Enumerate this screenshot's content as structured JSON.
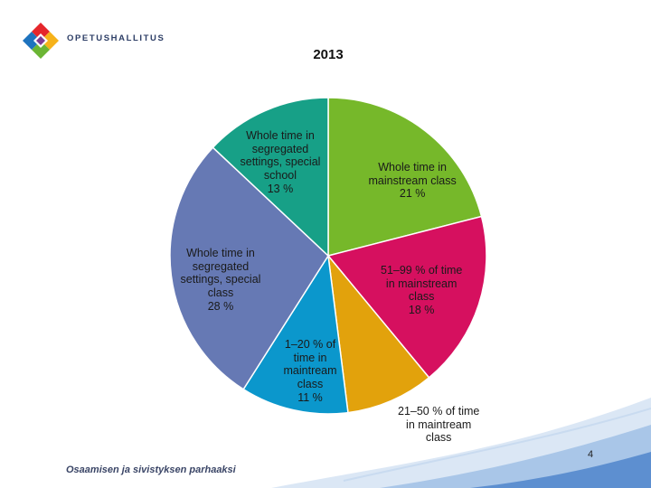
{
  "brand": {
    "name": "OPETUSHALLITUS",
    "tagline": "Osaamisen ja sivistyksen parhaaksi"
  },
  "slide": {
    "page_number": "4"
  },
  "colors": {
    "green": "#76b82a",
    "magenta": "#d6105f",
    "orange": "#e2a20c",
    "blue": "#0b97cc",
    "slate": "#6679b4",
    "teal": "#17a087"
  },
  "chart_data": {
    "type": "pie",
    "title": "2013",
    "unit": "%",
    "slices": [
      {
        "label_lines": [
          "Whole time in",
          "mainstream class"
        ],
        "value": 21,
        "value_text": "21 %",
        "color": "#76b82a"
      },
      {
        "label_lines": [
          "51–99 % of time",
          "in mainstream",
          "class"
        ],
        "value": 18,
        "value_text": "18 %",
        "color": "#d6105f"
      },
      {
        "label_lines": [
          "21–50 % of time",
          "in maintream",
          "class"
        ],
        "value": 9,
        "value_text": "",
        "color": "#e2a20c"
      },
      {
        "label_lines": [
          "1–20 % of",
          "time in",
          "maintream",
          "class"
        ],
        "value": 11,
        "value_text": "11 %",
        "color": "#0b97cc"
      },
      {
        "label_lines": [
          "Whole time in",
          "segregated",
          "settings, special",
          "class"
        ],
        "value": 28,
        "value_text": "28 %",
        "color": "#6679b4"
      },
      {
        "label_lines": [
          "Whole time in",
          "segregated",
          "settings, special",
          "school"
        ],
        "value": 13,
        "value_text": "13 %",
        "color": "#17a087"
      }
    ]
  }
}
